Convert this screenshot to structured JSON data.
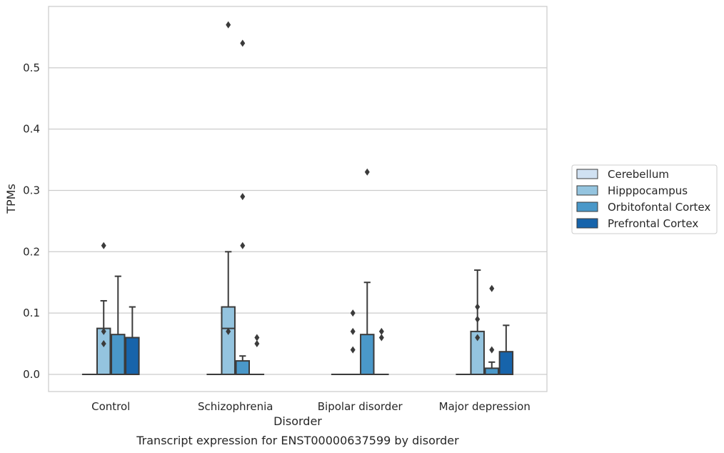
{
  "chart_data": {
    "type": "box",
    "title": "",
    "caption": "Transcript expression for ENST00000637599 by disorder",
    "xlabel": "Disorder",
    "ylabel": "TPMs",
    "ylim": [
      -0.028,
      0.6
    ],
    "yticks": [
      0.0,
      0.1,
      0.2,
      0.3,
      0.4,
      0.5
    ],
    "ytick_labels": [
      "0.0",
      "0.1",
      "0.2",
      "0.3",
      "0.4",
      "0.5"
    ],
    "grid": "horizontal",
    "legend_position": "right",
    "categories": [
      "Control",
      "Schizophrenia",
      "Bipolar disorder",
      "Major depression"
    ],
    "series": [
      {
        "name": "Cerebellum",
        "color": "#d0e1f2",
        "boxes": [
          {
            "q1": 0,
            "median": 0,
            "q3": 0,
            "whisker_low": 0,
            "whisker_high": 0,
            "outliers": []
          },
          {
            "q1": 0,
            "median": 0,
            "q3": 0,
            "whisker_low": 0,
            "whisker_high": 0,
            "outliers": []
          },
          {
            "q1": 0,
            "median": 0,
            "q3": 0,
            "whisker_low": 0,
            "whisker_high": 0,
            "outliers": []
          },
          {
            "q1": 0,
            "median": 0,
            "q3": 0,
            "whisker_low": 0,
            "whisker_high": 0,
            "outliers": []
          }
        ]
      },
      {
        "name": "Hipppocampus",
        "color": "#94c4df",
        "boxes": [
          {
            "q1": 0,
            "median": 0,
            "q3": 0.075,
            "whisker_low": 0,
            "whisker_high": 0.12,
            "outliers": [
              0.05,
              0.07,
              0.21
            ]
          },
          {
            "q1": 0,
            "median": 0.075,
            "q3": 0.11,
            "whisker_low": 0,
            "whisker_high": 0.2,
            "outliers": [
              0.57,
              0.07
            ]
          },
          {
            "q1": 0,
            "median": 0,
            "q3": 0,
            "whisker_low": 0,
            "whisker_high": 0,
            "outliers": [
              0.04,
              0.07,
              0.1
            ]
          },
          {
            "q1": 0,
            "median": 0,
            "q3": 0.07,
            "whisker_low": 0,
            "whisker_high": 0.17,
            "outliers": [
              0.06,
              0.09,
              0.11
            ]
          }
        ]
      },
      {
        "name": "Orbitofontal Cortex",
        "color": "#4a98c9",
        "boxes": [
          {
            "q1": 0,
            "median": 0,
            "q3": 0.065,
            "whisker_low": 0,
            "whisker_high": 0.16,
            "outliers": []
          },
          {
            "q1": 0,
            "median": 0,
            "q3": 0.022,
            "whisker_low": 0,
            "whisker_high": 0.03,
            "outliers": [
              0.54,
              0.29,
              0.21
            ]
          },
          {
            "q1": 0,
            "median": 0,
            "q3": 0.065,
            "whisker_low": 0,
            "whisker_high": 0.15,
            "outliers": [
              0.33
            ]
          },
          {
            "q1": 0,
            "median": 0,
            "q3": 0.01,
            "whisker_low": 0,
            "whisker_high": 0.02,
            "outliers": [
              0.14,
              0.04
            ]
          }
        ]
      },
      {
        "name": "Prefrontal Cortex",
        "color": "#1764ab",
        "boxes": [
          {
            "q1": 0,
            "median": 0,
            "q3": 0.06,
            "whisker_low": 0,
            "whisker_high": 0.11,
            "outliers": []
          },
          {
            "q1": 0,
            "median": 0,
            "q3": 0,
            "whisker_low": 0,
            "whisker_high": 0,
            "outliers": [
              0.05,
              0.06
            ]
          },
          {
            "q1": 0,
            "median": 0,
            "q3": 0,
            "whisker_low": 0,
            "whisker_high": 0,
            "outliers": [
              0.06,
              0.07
            ]
          },
          {
            "q1": 0,
            "median": 0,
            "q3": 0.037,
            "whisker_low": 0,
            "whisker_high": 0.08,
            "outliers": []
          }
        ]
      }
    ]
  }
}
